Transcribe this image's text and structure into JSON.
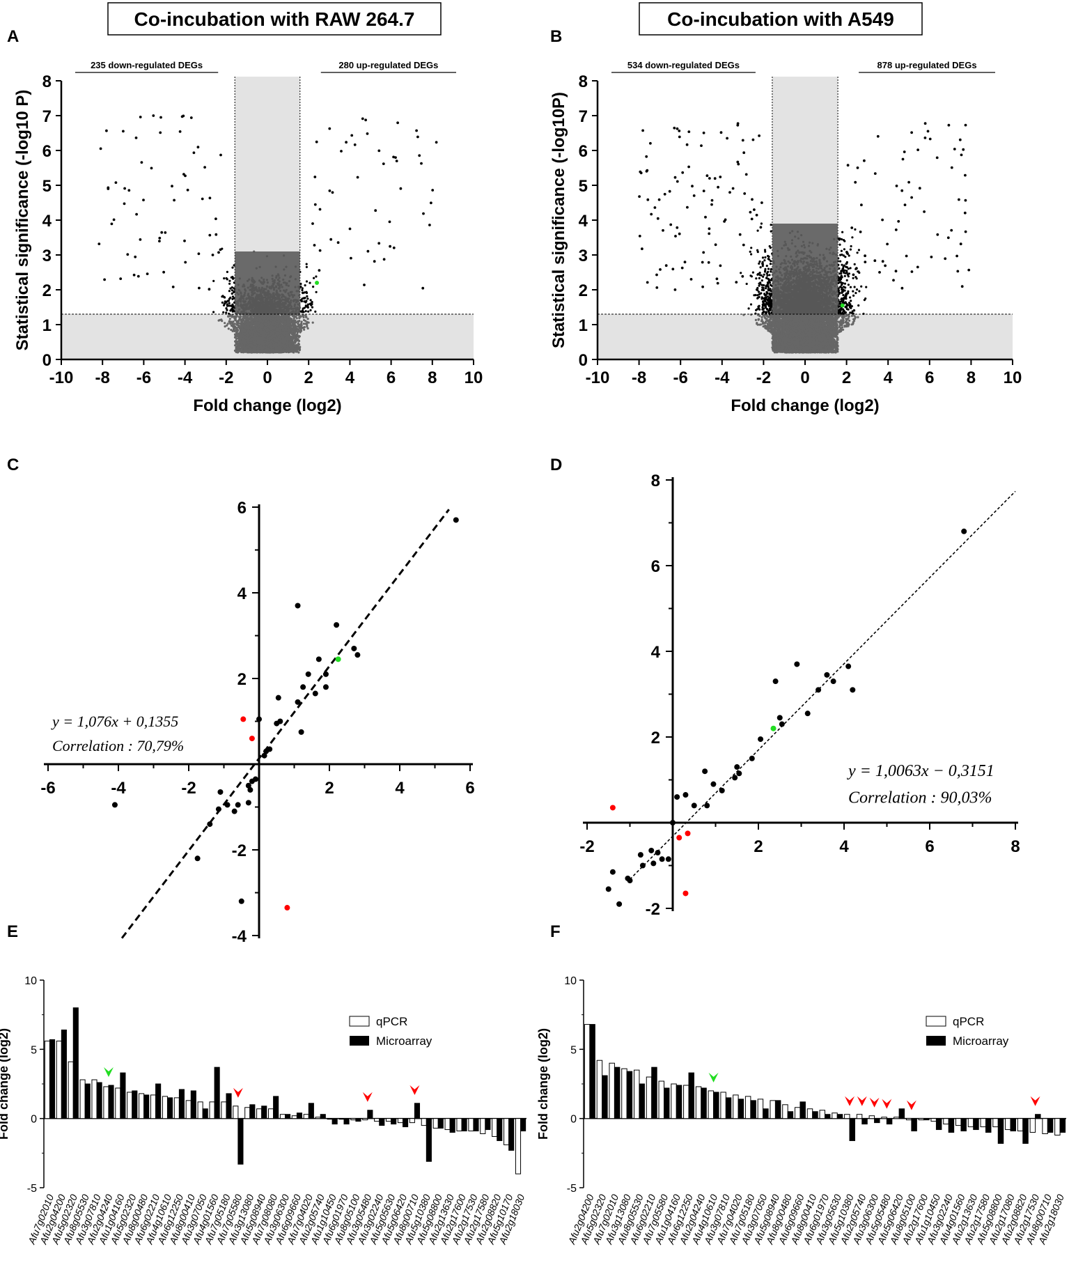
{
  "figure": {
    "title_left": "Co-incubation with RAW 264.7",
    "title_right": "Co-incubation with A549",
    "panel_labels": [
      "A",
      "B",
      "C",
      "D",
      "E",
      "F"
    ]
  },
  "colors": {
    "sig": "#000000",
    "nonsig": "#666666",
    "shade": "#e3e3e3",
    "highlight_red": "#ff0000",
    "highlight_green": "#22dd22"
  },
  "chart_data": [
    {
      "panel": "A",
      "type": "scatter",
      "subtype": "volcano",
      "xlabel": "Fold change (log2)",
      "ylabel": "Statistical significance (-log10 P)",
      "xlim": [
        -10,
        10
      ],
      "ylim": [
        0,
        8
      ],
      "xticks": [
        -10,
        -8,
        -6,
        -4,
        -2,
        0,
        2,
        4,
        6,
        8,
        10
      ],
      "yticks": [
        0,
        1,
        2,
        3,
        4,
        5,
        6,
        7,
        8
      ],
      "fc_threshold": 1.58,
      "p_threshold": 1.3,
      "down_label": "235 down-regulated DEGs",
      "up_label": "280 up-regulated DEGs",
      "down_count": 235,
      "up_count": 280,
      "highlight_points": [
        {
          "x": 2.4,
          "y": 2.2,
          "color": "green"
        }
      ]
    },
    {
      "panel": "B",
      "type": "scatter",
      "subtype": "volcano",
      "xlabel": "Fold change (log2)",
      "ylabel": "Statistical significance (-log10P)",
      "xlim": [
        -10,
        10
      ],
      "ylim": [
        0,
        8
      ],
      "xticks": [
        -10,
        -8,
        -6,
        -4,
        -2,
        0,
        2,
        4,
        6,
        8,
        10
      ],
      "yticks": [
        0,
        1,
        2,
        3,
        4,
        5,
        6,
        7,
        8
      ],
      "fc_threshold": 1.58,
      "p_threshold": 1.3,
      "down_label": "534 down-regulated DEGs",
      "up_label": "878 up-regulated DEGs",
      "down_count": 534,
      "up_count": 878,
      "highlight_points": [
        {
          "x": 1.8,
          "y": 1.55,
          "color": "green"
        }
      ]
    },
    {
      "panel": "C",
      "type": "scatter",
      "xlim": [
        -6,
        6
      ],
      "ylim": [
        -4,
        6
      ],
      "xticks": [
        -6,
        -4,
        -2,
        2,
        4,
        6
      ],
      "yticks": [
        -4,
        -2,
        2,
        4,
        6
      ],
      "equation": "y = 1,076x + 0,1355",
      "correlation": "Correlation : 70,79%",
      "fit": {
        "slope": 1.076,
        "intercept": 0.1355,
        "x_range": [
          -3.9,
          5.4
        ]
      },
      "points_black": [
        [
          5.6,
          5.7
        ],
        [
          1.1,
          3.7
        ],
        [
          2.2,
          3.25
        ],
        [
          2.7,
          2.7
        ],
        [
          2.8,
          2.55
        ],
        [
          1.7,
          2.45
        ],
        [
          1.4,
          2.1
        ],
        [
          1.9,
          2.1
        ],
        [
          1.25,
          1.8
        ],
        [
          1.9,
          1.8
        ],
        [
          1.6,
          1.65
        ],
        [
          0.55,
          1.55
        ],
        [
          0.6,
          1.0
        ],
        [
          0.5,
          0.95
        ],
        [
          0.0,
          1.05
        ],
        [
          1.1,
          1.45
        ],
        [
          1.2,
          0.75
        ],
        [
          0.3,
          0.35
        ],
        [
          0.2,
          0.3
        ],
        [
          0.15,
          0.2
        ],
        [
          -0.1,
          -0.35
        ],
        [
          -0.2,
          -0.4
        ],
        [
          -0.3,
          -0.5
        ],
        [
          -0.25,
          -0.6
        ],
        [
          -1.1,
          -0.65
        ],
        [
          -1.15,
          -1.05
        ],
        [
          -0.9,
          -0.95
        ],
        [
          -0.6,
          -0.95
        ],
        [
          -0.7,
          -1.1
        ],
        [
          -0.3,
          -0.9
        ],
        [
          -1.4,
          -1.4
        ],
        [
          -4.1,
          -0.95
        ],
        [
          -1.75,
          -2.2
        ],
        [
          -0.5,
          -3.2
        ]
      ],
      "points_red": [
        [
          -0.45,
          1.05
        ],
        [
          -0.2,
          0.6
        ],
        [
          0.8,
          -3.35
        ]
      ],
      "points_green": [
        [
          2.25,
          2.45
        ]
      ]
    },
    {
      "panel": "D",
      "type": "scatter",
      "xlim": [
        -2,
        8
      ],
      "ylim": [
        -2,
        8
      ],
      "xticks": [
        -2,
        2,
        4,
        6,
        8
      ],
      "yticks": [
        -2,
        2,
        4,
        6,
        8
      ],
      "equation": "y = 1,0063x − 0,3151",
      "correlation": "Correlation : 90,03%",
      "fit": {
        "slope": 1.0063,
        "intercept": -0.3151,
        "x_range": [
          -1.0,
          8.0
        ]
      },
      "points_black": [
        [
          6.8,
          6.8
        ],
        [
          2.9,
          3.7
        ],
        [
          2.4,
          3.3
        ],
        [
          3.6,
          3.45
        ],
        [
          4.1,
          3.65
        ],
        [
          3.4,
          3.1
        ],
        [
          3.75,
          3.3
        ],
        [
          4.2,
          3.1
        ],
        [
          3.15,
          2.55
        ],
        [
          2.55,
          2.3
        ],
        [
          2.5,
          2.45
        ],
        [
          2.05,
          1.95
        ],
        [
          1.85,
          1.5
        ],
        [
          1.5,
          1.3
        ],
        [
          1.55,
          1.15
        ],
        [
          1.45,
          1.05
        ],
        [
          1.15,
          0.75
        ],
        [
          0.8,
          0.4
        ],
        [
          0.95,
          0.9
        ],
        [
          0.75,
          1.2
        ],
        [
          0.5,
          0.4
        ],
        [
          0.3,
          0.65
        ],
        [
          0.1,
          0.6
        ],
        [
          0.0,
          0.0
        ],
        [
          -0.35,
          -0.7
        ],
        [
          -0.25,
          -0.85
        ],
        [
          -0.45,
          -0.95
        ],
        [
          -0.5,
          -0.65
        ],
        [
          -0.75,
          -0.75
        ],
        [
          -0.7,
          -1.0
        ],
        [
          -1.05,
          -1.3
        ],
        [
          -1.0,
          -1.35
        ],
        [
          -1.4,
          -1.15
        ],
        [
          -1.5,
          -1.55
        ],
        [
          -1.25,
          -1.9
        ],
        [
          -0.1,
          -0.85
        ]
      ],
      "points_red": [
        [
          -1.4,
          0.35
        ],
        [
          0.35,
          -0.25
        ],
        [
          0.15,
          -0.35
        ],
        [
          0.3,
          -1.65
        ]
      ],
      "points_green": [
        [
          2.35,
          2.2
        ]
      ]
    },
    {
      "panel": "E",
      "type": "bar",
      "ylabel": "Fold change (log2)",
      "ylim": [
        -5,
        10
      ],
      "yticks": [
        -5,
        0,
        5,
        10
      ],
      "legend": [
        "qPCR",
        "Microarray"
      ],
      "categories": [
        "Afu7g02010",
        "Afu2g04200",
        "Afu5g02320",
        "Afu8g05530",
        "Afu3g07810",
        "Afu2g04240",
        "Afu1g04160",
        "Afu5g02320",
        "Afu8g00480",
        "Afu6g02210",
        "Afu4g10610",
        "Afu6g12250",
        "Afu8g00410",
        "Afu3g07050",
        "Afu4g01560",
        "Afu7g05180",
        "Afu7g05580",
        "Afu3g13080",
        "Afu5g08940",
        "Afu7g08080",
        "Afu3g06300",
        "Afu6g09660",
        "Afu7g04020",
        "Afu2g05740",
        "Afu1g10450",
        "Afu6g01970",
        "Afu8g05100",
        "Afu3g05480",
        "Afu3g02240",
        "Afu5g05630",
        "Afu5g06420",
        "Afu8g00710",
        "Afu5g10380",
        "Afu5g08800",
        "Afu2g13630",
        "Afu2g17600",
        "Afu2g17530",
        "Afu2g17580",
        "Afu2g08820",
        "Afu5g10170",
        "Afu2g18030"
      ],
      "series": [
        {
          "name": "qPCR",
          "values": [
            5.6,
            5.6,
            4.1,
            2.8,
            2.8,
            2.3,
            2.2,
            1.9,
            1.8,
            1.7,
            1.6,
            1.5,
            1.3,
            1.2,
            1.2,
            1.2,
            0.9,
            0.8,
            0.7,
            0.7,
            0.3,
            0.2,
            0.3,
            0.1,
            0.0,
            0.0,
            -0.1,
            -0.1,
            -0.2,
            -0.2,
            -0.3,
            -0.3,
            -0.5,
            -0.7,
            -0.8,
            -0.9,
            -0.9,
            -1.1,
            -1.3,
            -1.9,
            -4.0
          ]
        },
        {
          "name": "Microarray",
          "values": [
            5.7,
            6.4,
            8.0,
            2.5,
            2.6,
            2.4,
            3.3,
            2.0,
            1.7,
            2.5,
            1.5,
            2.1,
            2.0,
            0.7,
            3.7,
            1.8,
            -3.3,
            1.0,
            0.9,
            1.6,
            0.3,
            0.4,
            1.1,
            0.3,
            -0.4,
            -0.4,
            -0.2,
            0.6,
            -0.5,
            -0.4,
            -0.6,
            1.1,
            -3.1,
            -0.7,
            -1.0,
            -0.9,
            -0.9,
            -0.8,
            -1.6,
            -2.3,
            -0.9
          ]
        }
      ],
      "arrows": [
        {
          "index": 5,
          "color": "green"
        },
        {
          "index": 16,
          "color": "red"
        },
        {
          "index": 27,
          "color": "red"
        },
        {
          "index": 31,
          "color": "red"
        }
      ]
    },
    {
      "panel": "F",
      "type": "bar",
      "ylabel": "Fold change (log2)",
      "ylim": [
        -5,
        10
      ],
      "yticks": [
        -5,
        0,
        5,
        10
      ],
      "legend": [
        "qPCR",
        "Microarray"
      ],
      "categories": [
        "Afu2g04200",
        "Afu5g02320",
        "Afu7g02010",
        "Afu3g13080",
        "Afu8g05530",
        "Afu6g02210",
        "Afu7g05580",
        "Afu1g04160",
        "Afu6g12250",
        "Afu2g04240",
        "Afu4g10610",
        "Afu3g07810",
        "Afu7g04020",
        "Afu7g05180",
        "Afu3g07050",
        "Afu5g08940",
        "Afu8g00480",
        "Afu6g09660",
        "Afu8g00410",
        "Afu6g01970",
        "Afu3g05630",
        "Afu5g10380",
        "Afu2g05740",
        "Afu3g06300",
        "Afu5g05480",
        "Afu5g06420",
        "Afu8g05100",
        "Afu2g17600",
        "Afu1g10450",
        "Afu3g02240",
        "Afu4g01560",
        "Afu2g13630",
        "Afu2g17580",
        "Afu5g08800",
        "Afu2g17080",
        "Afu2g08820",
        "Afu2g17530",
        "Afu8g00710",
        "Afu2g18030"
      ],
      "series": [
        {
          "name": "qPCR",
          "values": [
            6.8,
            4.2,
            4.0,
            3.6,
            3.5,
            3.0,
            2.7,
            2.5,
            2.4,
            2.3,
            2.0,
            1.9,
            1.7,
            1.6,
            1.4,
            1.3,
            1.0,
            0.8,
            0.7,
            0.6,
            0.4,
            0.3,
            0.3,
            0.2,
            0.1,
            0.1,
            -0.1,
            -0.1,
            -0.2,
            -0.4,
            -0.5,
            -0.6,
            -0.6,
            -0.6,
            -0.8,
            -0.9,
            -1.0,
            -1.1,
            -1.2
          ]
        },
        {
          "name": "Microarray",
          "values": [
            6.8,
            3.1,
            3.7,
            3.4,
            2.5,
            3.7,
            2.2,
            2.4,
            3.3,
            2.2,
            1.9,
            1.5,
            1.4,
            1.3,
            0.7,
            1.3,
            0.5,
            1.2,
            0.5,
            0.3,
            0.3,
            -1.6,
            -0.4,
            -0.3,
            -0.4,
            0.7,
            -0.9,
            -0.1,
            -0.8,
            -1.0,
            -0.9,
            -0.8,
            -1.0,
            -1.8,
            -0.9,
            -1.8,
            0.3,
            -1.0,
            -1.0
          ]
        }
      ],
      "arrows": [
        {
          "index": 10,
          "color": "green"
        },
        {
          "index": 21,
          "color": "red"
        },
        {
          "index": 22,
          "color": "red"
        },
        {
          "index": 23,
          "color": "red"
        },
        {
          "index": 24,
          "color": "red"
        },
        {
          "index": 26,
          "color": "red"
        },
        {
          "index": 36,
          "color": "red"
        }
      ]
    }
  ]
}
